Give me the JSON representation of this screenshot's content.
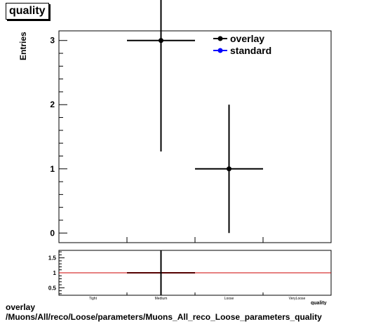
{
  "title": "quality",
  "caption": {
    "line1": "overlay",
    "line2": "/Muons/All/reco/Loose/parameters/Muons_All_reco_Loose_parameters_quality"
  },
  "colors": {
    "overlay": "#000000",
    "standard": "#0000ff",
    "ratio_line": "#cc0000"
  },
  "chart_data": {
    "type": "scatter",
    "title": "quality",
    "xlabel": "quality",
    "ylabel": "Entries",
    "categories": [
      "Tight",
      "Medium",
      "Loose",
      "VeryLoose"
    ],
    "ylim": [
      -0.15,
      3.15
    ],
    "yticks": [
      0,
      1,
      2,
      3
    ],
    "legend": {
      "position": "top-right",
      "entries": [
        "overlay",
        "standard"
      ]
    },
    "series": [
      {
        "name": "overlay",
        "points": [
          {
            "category": "Medium",
            "y": 3,
            "err_low": 1.73,
            "err_high": 2.3
          },
          {
            "category": "Loose",
            "y": 1,
            "err_low": 1,
            "err_high": 1
          }
        ]
      },
      {
        "name": "standard",
        "points": []
      }
    ],
    "ratio": {
      "ylim": [
        0.25,
        1.75
      ],
      "yticks": [
        "0.5",
        "1",
        "1.5"
      ],
      "reference": 1,
      "points": [
        {
          "category": "Medium",
          "y": 1
        }
      ]
    }
  }
}
